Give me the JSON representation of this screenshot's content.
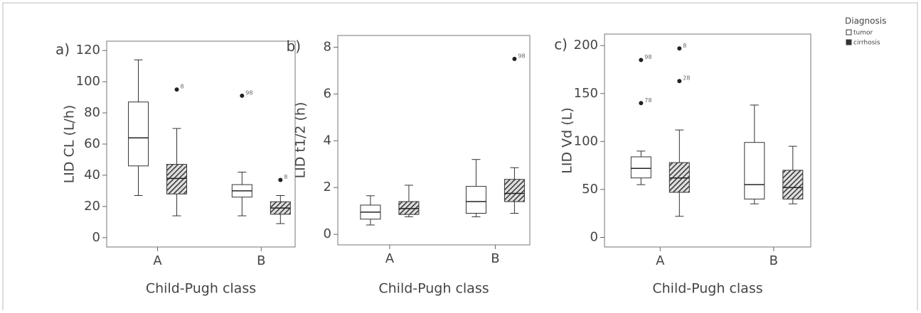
{
  "chart_data": [
    {
      "type": "box",
      "panel_label": "a)",
      "ylabel": "LID CL (L/h)",
      "xlabel": "Child-Pugh class",
      "categories": [
        "A",
        "B"
      ],
      "ylim": [
        -6,
        126
      ],
      "yticks": [
        0,
        20,
        40,
        60,
        80,
        100,
        120
      ],
      "series": [
        {
          "name": "tumor",
          "color": "#ffffff",
          "boxes": [
            {
              "min": 27,
              "q1": 46,
              "median": 64,
              "q3": 87,
              "max": 114,
              "outliers": []
            },
            {
              "min": 14,
              "q1": 26,
              "median": 30,
              "q3": 34,
              "max": 42,
              "outliers": [
                {
                  "value": 91,
                  "id": "98"
                }
              ]
            }
          ]
        },
        {
          "name": "cirrhosis",
          "color": "#4a4a4a",
          "boxes": [
            {
              "min": 14,
              "q1": 28,
              "median": 38,
              "q3": 47,
              "max": 70,
              "outliers": [
                {
                  "value": 95,
                  "id": "8"
                }
              ]
            },
            {
              "min": 9,
              "q1": 15,
              "median": 19,
              "q3": 23,
              "max": 27,
              "outliers": [
                {
                  "value": 37,
                  "id": "8"
                }
              ]
            }
          ]
        }
      ]
    },
    {
      "type": "box",
      "panel_label": "b)",
      "ylabel": "LID t1/2 (h)",
      "xlabel": "Child-Pugh class",
      "categories": [
        "A",
        "B"
      ],
      "ylim": [
        -0.45,
        8.5
      ],
      "yticks": [
        0,
        2,
        4,
        6,
        8
      ],
      "series": [
        {
          "name": "tumor",
          "color": "#ffffff",
          "boxes": [
            {
              "min": 0.4,
              "q1": 0.65,
              "median": 0.95,
              "q3": 1.25,
              "max": 1.65,
              "outliers": []
            },
            {
              "min": 0.75,
              "q1": 0.9,
              "median": 1.4,
              "q3": 2.05,
              "max": 3.2,
              "outliers": []
            }
          ]
        },
        {
          "name": "cirrhosis",
          "color": "#4a4a4a",
          "boxes": [
            {
              "min": 0.75,
              "q1": 0.85,
              "median": 1.1,
              "q3": 1.4,
              "max": 2.1,
              "outliers": []
            },
            {
              "min": 0.9,
              "q1": 1.4,
              "median": 1.75,
              "q3": 2.35,
              "max": 2.85,
              "outliers": [
                {
                  "value": 7.5,
                  "id": "98"
                }
              ]
            }
          ]
        }
      ]
    },
    {
      "type": "box",
      "panel_label": "c)",
      "ylabel": "LID Vd (L)",
      "xlabel": "Child-Pugh class",
      "categories": [
        "A",
        "B"
      ],
      "ylim": [
        -10,
        212
      ],
      "yticks": [
        0,
        50,
        100,
        150,
        200
      ],
      "legend_title": "Diagnosis",
      "legend": "outside-right",
      "series": [
        {
          "name": "tumor",
          "color": "#ffffff",
          "boxes": [
            {
              "min": 55,
              "q1": 62,
              "median": 72,
              "q3": 84,
              "max": 90,
              "outliers": [
                {
                  "value": 185,
                  "id": "98"
                },
                {
                  "value": 140,
                  "id": "78"
                }
              ]
            },
            {
              "min": 35,
              "q1": 40,
              "median": 55,
              "q3": 99,
              "max": 138,
              "outliers": []
            }
          ]
        },
        {
          "name": "cirrhosis",
          "color": "#4a4a4a",
          "boxes": [
            {
              "min": 22,
              "q1": 47,
              "median": 62,
              "q3": 78,
              "max": 112,
              "outliers": [
                {
                  "value": 197,
                  "id": "8"
                },
                {
                  "value": 163,
                  "id": "28"
                }
              ]
            },
            {
              "min": 35,
              "q1": 40,
              "median": 52,
              "q3": 70,
              "max": 95,
              "outliers": []
            }
          ]
        }
      ]
    }
  ]
}
